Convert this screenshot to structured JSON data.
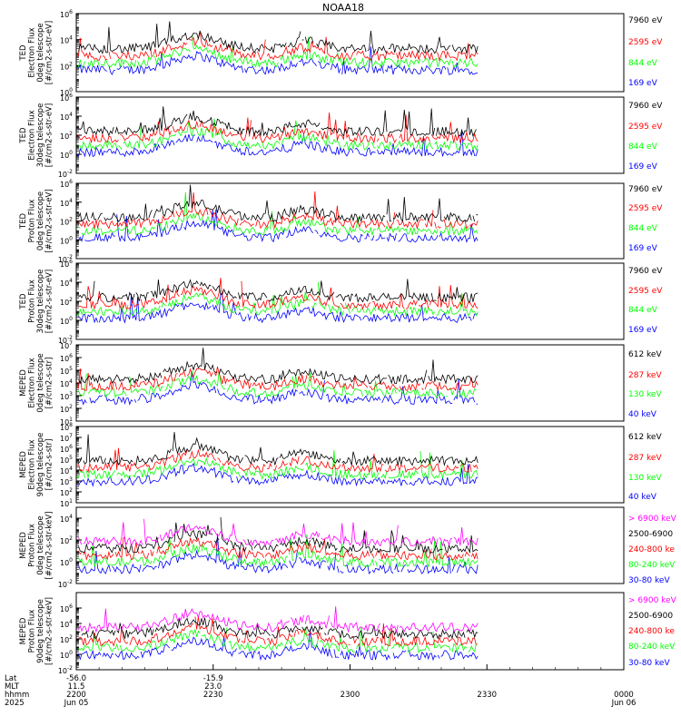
{
  "title": "NOAA18",
  "colors": {
    "black": "#000000",
    "red": "#ff0000",
    "green": "#00ff00",
    "blue": "#0000ff",
    "magenta": "#ff00ff"
  },
  "chart_data": [
    {
      "type": "line",
      "ylabel": [
        "TED",
        "Electron Flux",
        "0deg telescope",
        "[#/cm2-s-str-eV]"
      ],
      "ylim": [
        1,
        1000000
      ],
      "log": true,
      "yticks": [
        {
          "label": "10",
          "exp": "0"
        },
        {
          "label": "10",
          "exp": "2"
        },
        {
          "label": "10",
          "exp": "4"
        },
        {
          "label": "10",
          "exp": "6"
        }
      ],
      "series": [
        {
          "name": "7960 eV",
          "color": "black"
        },
        {
          "name": "2595 eV",
          "color": "red"
        },
        {
          "name": "844 eV",
          "color": "green"
        },
        {
          "name": "169 eV",
          "color": "blue"
        }
      ]
    },
    {
      "type": "line",
      "ylabel": [
        "TED",
        "Electron Flux",
        "30deg telescope",
        "[#/cm2-s-str-eV]"
      ],
      "ylim": [
        0.01,
        1000000
      ],
      "log": true,
      "yticks": [
        {
          "label": "10",
          "exp": "-2"
        },
        {
          "label": "10",
          "exp": "0"
        },
        {
          "label": "10",
          "exp": "2"
        },
        {
          "label": "10",
          "exp": "4"
        },
        {
          "label": "10",
          "exp": "6"
        }
      ],
      "series": [
        {
          "name": "7960 eV",
          "color": "black"
        },
        {
          "name": "2595 eV",
          "color": "red"
        },
        {
          "name": "844 eV",
          "color": "green"
        },
        {
          "name": "169 eV",
          "color": "blue"
        }
      ]
    },
    {
      "type": "line",
      "ylabel": [
        "TED",
        "Proton Flux",
        "0deg telescope",
        "[#/cm2-s-str-eV]"
      ],
      "ylim": [
        0.01,
        1000000
      ],
      "log": true,
      "yticks": [
        {
          "label": "10",
          "exp": "-2"
        },
        {
          "label": "10",
          "exp": "0"
        },
        {
          "label": "10",
          "exp": "2"
        },
        {
          "label": "10",
          "exp": "4"
        },
        {
          "label": "10",
          "exp": "6"
        }
      ],
      "series": [
        {
          "name": "7960 eV",
          "color": "black"
        },
        {
          "name": "2595 eV",
          "color": "red"
        },
        {
          "name": "844 eV",
          "color": "green"
        },
        {
          "name": "169 eV",
          "color": "blue"
        }
      ]
    },
    {
      "type": "line",
      "ylabel": [
        "TED",
        "Proton Flux",
        "30deg telescope",
        "[#/cm2-s-str-eV]"
      ],
      "ylim": [
        0.01,
        1000000
      ],
      "log": true,
      "yticks": [
        {
          "label": "10",
          "exp": "-2"
        },
        {
          "label": "10",
          "exp": "0"
        },
        {
          "label": "10",
          "exp": "2"
        },
        {
          "label": "10",
          "exp": "4"
        },
        {
          "label": "10",
          "exp": "6"
        }
      ],
      "series": [
        {
          "name": "7960 eV",
          "color": "black"
        },
        {
          "name": "2595 eV",
          "color": "red"
        },
        {
          "name": "844 eV",
          "color": "green"
        },
        {
          "name": "169 eV",
          "color": "blue"
        }
      ]
    },
    {
      "type": "line",
      "ylabel": [
        "MEPED",
        "Electron Flux",
        "0deg telescope",
        "[#/cm2-s-str]"
      ],
      "ylim": [
        10,
        10000000
      ],
      "log": true,
      "yticks": [
        {
          "label": "10",
          "exp": "1"
        },
        {
          "label": "10",
          "exp": "2"
        },
        {
          "label": "10",
          "exp": "3"
        },
        {
          "label": "10",
          "exp": "4"
        },
        {
          "label": "10",
          "exp": "5"
        },
        {
          "label": "10",
          "exp": "6"
        },
        {
          "label": "10",
          "exp": "7"
        }
      ],
      "series": [
        {
          "name": "612 keV",
          "color": "black"
        },
        {
          "name": "287 keV",
          "color": "red"
        },
        {
          "name": "130 keV",
          "color": "green"
        },
        {
          "name": "40 keV",
          "color": "blue"
        }
      ]
    },
    {
      "type": "line",
      "ylabel": [
        "MEPED",
        "Electron Flux",
        "90deg telescope",
        "[#/cm2-s-str]"
      ],
      "ylim": [
        10,
        100000000
      ],
      "log": true,
      "yticks": [
        {
          "label": "10",
          "exp": "1"
        },
        {
          "label": "10",
          "exp": "2"
        },
        {
          "label": "10",
          "exp": "3"
        },
        {
          "label": "10",
          "exp": "4"
        },
        {
          "label": "10",
          "exp": "5"
        },
        {
          "label": "10",
          "exp": "6"
        },
        {
          "label": "10",
          "exp": "7"
        },
        {
          "label": "10",
          "exp": "8"
        }
      ],
      "series": [
        {
          "name": "612 keV",
          "color": "black"
        },
        {
          "name": "287 keV",
          "color": "red"
        },
        {
          "name": "130 keV",
          "color": "green"
        },
        {
          "name": "40 keV",
          "color": "blue"
        }
      ]
    },
    {
      "type": "line",
      "ylabel": [
        "MEPED",
        "Proton Flux",
        "0deg telescope",
        "[#/cm2-s-str-keV]"
      ],
      "ylim": [
        0.01,
        100000
      ],
      "log": true,
      "yticks": [
        {
          "label": "10",
          "exp": "-2"
        },
        {
          "label": "10",
          "exp": "0"
        },
        {
          "label": "10",
          "exp": "2"
        },
        {
          "label": "10",
          "exp": "4"
        }
      ],
      "series": [
        {
          "name": "> 6900 keV",
          "color": "magenta"
        },
        {
          "name": "2500-6900",
          "color": "black"
        },
        {
          "name": "240-800 ke",
          "color": "red"
        },
        {
          "name": "80-240 keV",
          "color": "green"
        },
        {
          "name": "30-80 keV",
          "color": "blue"
        }
      ]
    },
    {
      "type": "line",
      "ylabel": [
        "MEPED",
        "Proton Flux",
        "90deg telescope",
        "[#/cm2-s-str-keV]"
      ],
      "ylim": [
        0.01,
        100000000
      ],
      "log": true,
      "yticks": [
        {
          "label": "10",
          "exp": "-2"
        },
        {
          "label": "10",
          "exp": "0"
        },
        {
          "label": "10",
          "exp": "2"
        },
        {
          "label": "10",
          "exp": "4"
        },
        {
          "label": "10",
          "exp": "6"
        }
      ],
      "series": [
        {
          "name": "> 6900 keV",
          "color": "magenta"
        },
        {
          "name": "2500-6900",
          "color": "black"
        },
        {
          "name": "240-800 ke",
          "color": "red"
        },
        {
          "name": "80-240 keV",
          "color": "green"
        },
        {
          "name": "30-80 keV",
          "color": "blue"
        }
      ]
    }
  ],
  "x_axis": {
    "row_labels": [
      "Lat",
      "MLT",
      "hhmm",
      "2025"
    ],
    "ticks": [
      {
        "lat": "-56.0",
        "mlt": "11.5",
        "hhmm": "2200",
        "date": "Jun 05"
      },
      {
        "lat": "-15.9",
        "mlt": "23.0",
        "hhmm": "2230",
        "date": ""
      },
      {
        "lat": "",
        "mlt": "",
        "hhmm": "2300",
        "date": ""
      },
      {
        "lat": "",
        "mlt": "",
        "hhmm": "2330",
        "date": ""
      },
      {
        "lat": "",
        "mlt": "",
        "hhmm": "0000",
        "date": "Jun 06"
      }
    ],
    "xlim_minutes": [
      0,
      120
    ]
  }
}
